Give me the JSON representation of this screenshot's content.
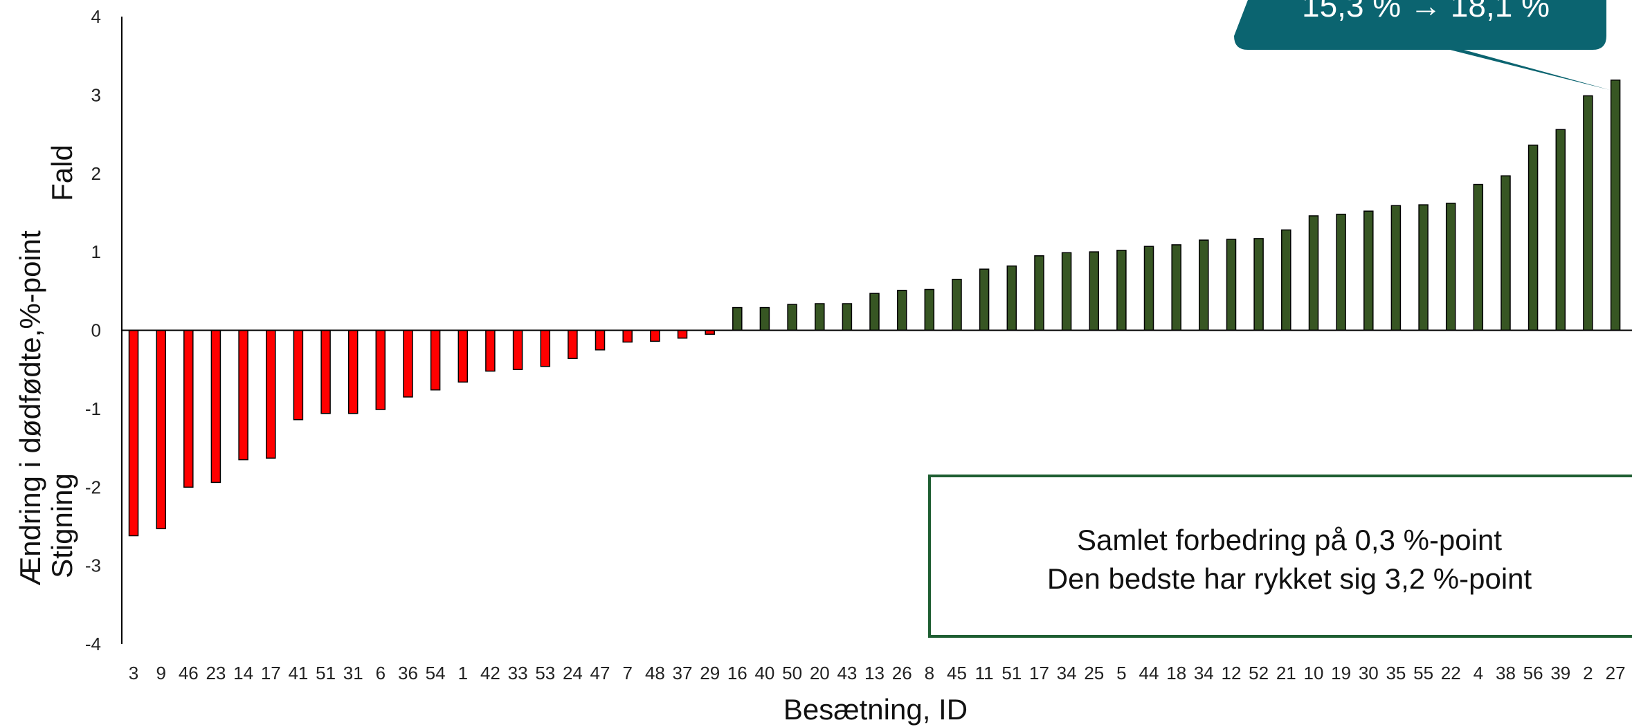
{
  "chart_data": {
    "type": "bar",
    "title": "",
    "xlabel": "Besætning, ID",
    "ylabel": "Ændring i dødfødte,%-point",
    "ylabel_top": "Fald",
    "ylabel_bottom": "Stigning",
    "ylim": [
      -4,
      4
    ],
    "yticks": [
      4,
      3,
      2,
      1,
      0,
      -1,
      -2,
      -3,
      -4
    ],
    "grid": false,
    "categories": [
      "3",
      "9",
      "46",
      "23",
      "14",
      "17",
      "41",
      "51",
      "31",
      "6",
      "36",
      "54",
      "1",
      "42",
      "33",
      "53",
      "24",
      "47",
      "7",
      "48",
      "37",
      "29",
      "16",
      "40",
      "50",
      "20",
      "43",
      "13",
      "26",
      "8",
      "45",
      "11",
      "51",
      "17",
      "34",
      "25",
      "5",
      "44",
      "18",
      "34",
      "12",
      "52",
      "21",
      "10",
      "19",
      "30",
      "35",
      "55",
      "22",
      "4",
      "38",
      "56",
      "39",
      "2",
      "27"
    ],
    "values": [
      -2.62,
      -2.53,
      -2.0,
      -1.94,
      -1.65,
      -1.63,
      -1.14,
      -1.06,
      -1.06,
      -1.01,
      -0.85,
      -0.76,
      -0.66,
      -0.52,
      -0.5,
      -0.46,
      -0.36,
      -0.25,
      -0.15,
      -0.14,
      -0.1,
      -0.05,
      0.29,
      0.29,
      0.33,
      0.34,
      0.34,
      0.47,
      0.51,
      0.52,
      0.65,
      0.78,
      0.82,
      0.95,
      0.99,
      1.0,
      1.02,
      1.07,
      1.09,
      1.15,
      1.16,
      1.17,
      1.28,
      1.46,
      1.48,
      1.52,
      1.59,
      1.6,
      1.62,
      1.86,
      1.97,
      2.36,
      2.56,
      2.99,
      3.19
    ],
    "colors": {
      "negative": "#ff0000",
      "positive": "#375623",
      "bar_stroke": "#000000"
    },
    "callout": {
      "text": "15,3 % → 18,1 %",
      "color": "#0b6470"
    },
    "info_box": {
      "line1": "Samlet forbedring på 0,3 %-point",
      "line2": "Den bedste har rykket sig 3,2 %-point",
      "border_color": "#1e5e32"
    }
  }
}
